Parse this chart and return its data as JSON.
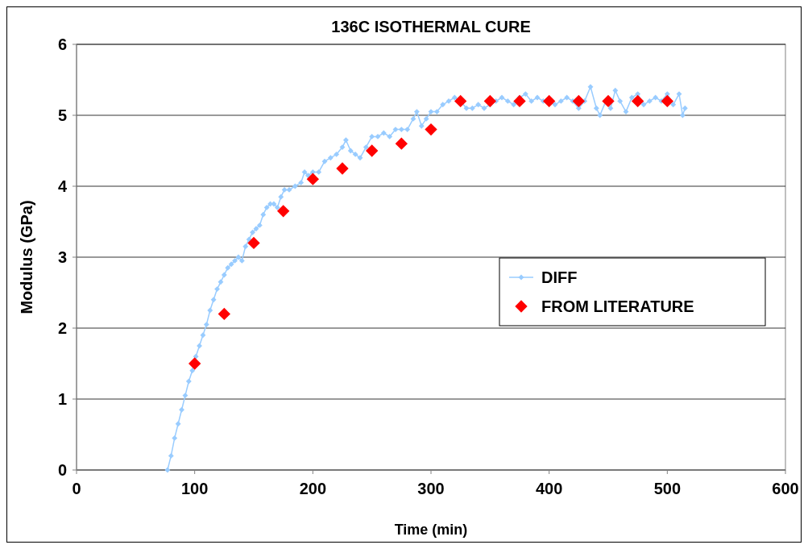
{
  "chart_data": {
    "type": "line",
    "title": "136C ISOTHERMAL CURE",
    "xlabel": "Time (min)",
    "ylabel": "Modulus (GPa)",
    "xlim": [
      0,
      600
    ],
    "xticks": [
      0,
      100,
      200,
      300,
      400,
      500,
      600
    ],
    "ylim": [
      0,
      6
    ],
    "yticks": [
      0,
      1,
      2,
      3,
      4,
      5,
      6
    ],
    "grid": "y",
    "legend": "right",
    "series": [
      {
        "name": "DIFF",
        "color": "#99ccff",
        "marker": "diamond",
        "x": [
          77,
          80,
          83,
          86,
          89,
          92,
          95,
          98,
          101,
          104,
          107,
          110,
          113,
          116,
          119,
          122,
          125,
          128,
          131,
          134,
          137,
          140,
          143,
          146,
          149,
          152,
          155,
          158,
          161,
          164,
          167,
          170,
          173,
          176,
          180,
          185,
          190,
          193,
          196,
          200,
          205,
          210,
          215,
          220,
          225,
          228,
          232,
          236,
          240,
          245,
          250,
          255,
          260,
          265,
          270,
          275,
          280,
          285,
          288,
          292,
          296,
          300,
          305,
          310,
          315,
          320,
          325,
          330,
          335,
          340,
          345,
          350,
          355,
          360,
          365,
          370,
          375,
          380,
          385,
          390,
          395,
          400,
          405,
          410,
          415,
          420,
          425,
          430,
          435,
          440,
          443,
          448,
          452,
          456,
          460,
          465,
          470,
          475,
          480,
          485,
          490,
          495,
          500,
          505,
          510,
          513,
          515
        ],
        "values": [
          0,
          0.2,
          0.45,
          0.65,
          0.85,
          1.05,
          1.25,
          1.4,
          1.6,
          1.75,
          1.9,
          2.05,
          2.25,
          2.4,
          2.55,
          2.65,
          2.75,
          2.85,
          2.9,
          2.95,
          3.0,
          2.95,
          3.15,
          3.25,
          3.35,
          3.4,
          3.45,
          3.6,
          3.7,
          3.75,
          3.75,
          3.7,
          3.85,
          3.95,
          3.95,
          4.0,
          4.05,
          4.2,
          4.15,
          4.2,
          4.2,
          4.35,
          4.4,
          4.45,
          4.55,
          4.65,
          4.5,
          4.45,
          4.4,
          4.55,
          4.7,
          4.7,
          4.75,
          4.7,
          4.8,
          4.8,
          4.8,
          4.95,
          5.05,
          4.85,
          4.95,
          5.05,
          5.05,
          5.15,
          5.2,
          5.25,
          5.2,
          5.1,
          5.1,
          5.15,
          5.1,
          5.15,
          5.2,
          5.25,
          5.2,
          5.15,
          5.25,
          5.3,
          5.2,
          5.25,
          5.2,
          5.2,
          5.15,
          5.2,
          5.25,
          5.2,
          5.1,
          5.2,
          5.4,
          5.1,
          5.0,
          5.2,
          5.1,
          5.35,
          5.2,
          5.05,
          5.25,
          5.3,
          5.15,
          5.2,
          5.25,
          5.2,
          5.3,
          5.15,
          5.3,
          5.0,
          5.1
        ]
      },
      {
        "name": "FROM LITERATURE",
        "type": "scatter",
        "color": "#ff0000",
        "marker": "diamond",
        "x": [
          100,
          125,
          150,
          175,
          200,
          225,
          250,
          275,
          300,
          325,
          350,
          375,
          400,
          425,
          450,
          475,
          500
        ],
        "values": [
          1.5,
          2.2,
          3.2,
          3.65,
          4.1,
          4.25,
          4.5,
          4.6,
          4.8,
          5.2,
          5.2,
          5.2,
          5.2,
          5.2,
          5.2,
          5.2,
          5.2
        ]
      }
    ]
  }
}
